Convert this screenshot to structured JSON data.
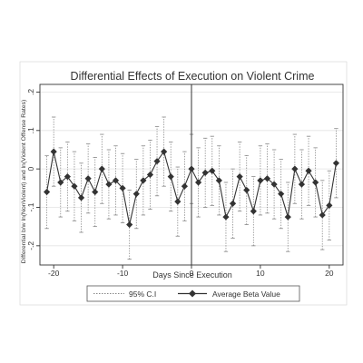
{
  "chart_data": {
    "type": "line",
    "title": "Differential Effects of Execution on Violent Crime",
    "xlabel": "Days Since Execution",
    "ylabel": "Differential b/w ln(NonViolent) and ln(Violent Offense Rates)",
    "xlim": [
      -22,
      22
    ],
    "ylim": [
      -0.25,
      0.22
    ],
    "x_ticks": [
      -20,
      -10,
      0,
      10,
      20
    ],
    "y_ticks": [
      -0.2,
      -0.1,
      0,
      0.1,
      0.2
    ],
    "x_tick_labels": [
      "-20",
      "-10",
      "0",
      "10",
      "20"
    ],
    "y_tick_labels": [
      "-.2",
      "-.1",
      "0",
      ".1",
      ".2"
    ],
    "grid": true,
    "reference_line_x": 0,
    "legend_position": "bottom",
    "series": [
      {
        "name": "Average Beta Value",
        "style": "solid line with diamond markers",
        "x": [
          -21,
          -20,
          -19,
          -18,
          -17,
          -16,
          -15,
          -14,
          -13,
          -12,
          -11,
          -10,
          -9,
          -8,
          -7,
          -6,
          -5,
          -4,
          -3,
          -2,
          -1,
          0,
          1,
          2,
          3,
          4,
          5,
          6,
          7,
          8,
          9,
          10,
          11,
          12,
          13,
          14,
          15,
          16,
          17,
          18,
          19,
          20,
          21
        ],
        "y": [
          -0.06,
          0.045,
          -0.035,
          -0.02,
          -0.045,
          -0.075,
          -0.025,
          -0.06,
          0.0,
          -0.04,
          -0.03,
          -0.05,
          -0.145,
          -0.065,
          -0.03,
          -0.015,
          0.02,
          0.045,
          -0.02,
          -0.085,
          -0.045,
          0.0,
          -0.035,
          -0.01,
          -0.005,
          -0.03,
          -0.125,
          -0.09,
          -0.02,
          -0.055,
          -0.11,
          -0.03,
          -0.025,
          -0.04,
          -0.065,
          -0.125,
          0.0,
          -0.04,
          -0.005,
          -0.035,
          -0.12,
          -0.095,
          0.015
        ]
      },
      {
        "name": "95% C.I",
        "style": "dashed error bars",
        "x": [
          -21,
          -20,
          -19,
          -18,
          -17,
          -16,
          -15,
          -14,
          -13,
          -12,
          -11,
          -10,
          -9,
          -8,
          -7,
          -6,
          -5,
          -4,
          -3,
          -2,
          -1,
          0,
          1,
          2,
          3,
          4,
          5,
          6,
          7,
          8,
          9,
          10,
          11,
          12,
          13,
          14,
          15,
          16,
          17,
          18,
          19,
          20,
          21
        ],
        "lower": [
          -0.155,
          -0.045,
          -0.125,
          -0.11,
          -0.135,
          -0.165,
          -0.115,
          -0.15,
          -0.09,
          -0.13,
          -0.12,
          -0.14,
          -0.235,
          -0.155,
          -0.12,
          -0.105,
          -0.07,
          -0.045,
          -0.11,
          -0.175,
          -0.135,
          -0.09,
          -0.125,
          -0.1,
          -0.095,
          -0.12,
          -0.215,
          -0.18,
          -0.11,
          -0.145,
          -0.2,
          -0.12,
          -0.115,
          -0.13,
          -0.155,
          -0.215,
          -0.09,
          -0.13,
          -0.095,
          -0.125,
          -0.21,
          -0.185,
          -0.075
        ],
        "upper": [
          0.035,
          0.135,
          0.055,
          0.07,
          0.045,
          0.015,
          0.065,
          0.03,
          0.09,
          0.05,
          0.06,
          0.04,
          -0.055,
          0.025,
          0.06,
          0.075,
          0.11,
          0.135,
          0.07,
          0.005,
          0.045,
          0.09,
          0.055,
          0.08,
          0.085,
          0.06,
          -0.035,
          0.0,
          0.07,
          0.035,
          -0.02,
          0.06,
          0.065,
          0.05,
          0.025,
          -0.035,
          0.09,
          0.05,
          0.085,
          0.055,
          -0.03,
          -0.005,
          0.105
        ]
      }
    ],
    "legend": {
      "ci_label": "95% C.I",
      "beta_label": "Average Beta Value"
    },
    "colors": {
      "series": "#333333",
      "ci": "#888888",
      "grid": "#e3e3e3",
      "axis": "#333333",
      "background": "#ffffff"
    }
  }
}
